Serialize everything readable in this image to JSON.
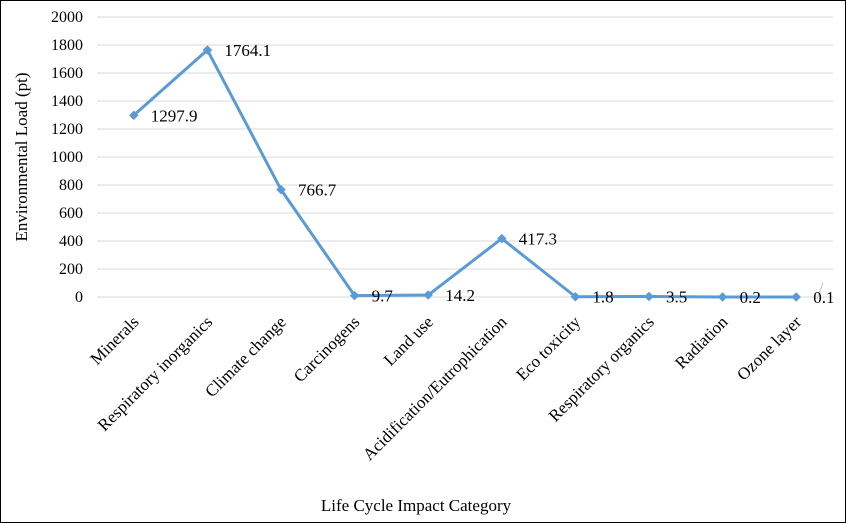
{
  "chart_data": {
    "type": "line",
    "xlabel": "Life Cycle Impact Category",
    "ylabel": "Environmental Load (pt)",
    "ylim": [
      0,
      2000
    ],
    "yticks": [
      0,
      200,
      400,
      600,
      800,
      1000,
      1200,
      1400,
      1600,
      1800,
      2000
    ],
    "grid": true,
    "legend": "none",
    "categories": [
      "Minerals",
      "Respiratory inorganics",
      "Climate change",
      "Carcinogens",
      "Land use",
      "Acidification/Eutrophication",
      "Eco toxicity",
      "Respiratory organics",
      "Radiation",
      "Ozone layer"
    ],
    "series": [
      {
        "values": [
          1297.9,
          1764.1,
          766.7,
          9.7,
          14.2,
          417.3,
          1.8,
          3.5,
          0.2,
          0.1
        ],
        "labels": [
          "1297.9",
          "1764.1",
          "766.7",
          "9.7",
          "14.2",
          "417.3",
          "1.8",
          "3.5",
          "0.2",
          "0.1"
        ],
        "color": "#5b9bd5"
      }
    ],
    "gridline_color": "#d9d9d9"
  }
}
